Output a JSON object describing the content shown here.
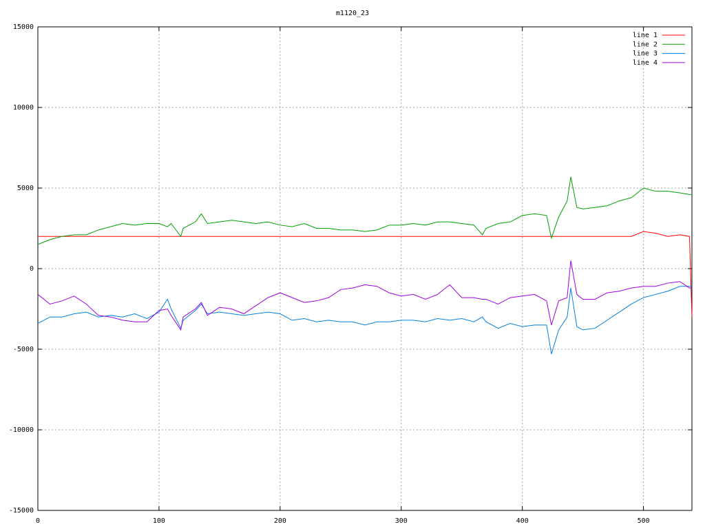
{
  "chart_data": {
    "type": "line",
    "title": "m1120_23",
    "x": [
      0,
      10,
      20,
      30,
      40,
      50,
      60,
      70,
      80,
      90,
      100,
      107,
      110,
      118,
      120,
      130,
      135,
      140,
      150,
      160,
      170,
      180,
      190,
      200,
      210,
      220,
      230,
      240,
      250,
      260,
      270,
      280,
      290,
      300,
      310,
      320,
      330,
      340,
      350,
      360,
      367,
      370,
      380,
      390,
      400,
      410,
      420,
      424,
      430,
      437,
      440,
      445,
      450,
      460,
      470,
      480,
      490,
      500,
      510,
      520,
      530,
      538,
      540
    ],
    "series": [
      {
        "name": "line 1",
        "color": "#ff0000",
        "values": [
          2000,
          2000,
          2000,
          2000,
          2000,
          2000,
          2000,
          2000,
          2000,
          2000,
          2000,
          2000,
          2000,
          2000,
          2000,
          2000,
          2000,
          2000,
          2000,
          2000,
          2000,
          2000,
          2000,
          2000,
          2000,
          2000,
          2000,
          2000,
          2000,
          2000,
          2000,
          2000,
          2000,
          2000,
          2000,
          2000,
          2000,
          2000,
          2000,
          2000,
          2000,
          2000,
          2000,
          2000,
          2000,
          2000,
          2000,
          2000,
          2000,
          2000,
          2000,
          2000,
          2000,
          2000,
          2000,
          2000,
          2000,
          2300,
          2200,
          2000,
          2100,
          2000,
          -3000
        ]
      },
      {
        "name": "line 2",
        "color": "#00a000",
        "values": [
          1500,
          1800,
          2000,
          2100,
          2100,
          2400,
          2600,
          2800,
          2700,
          2800,
          2800,
          2600,
          2800,
          2000,
          2500,
          2900,
          3400,
          2800,
          2900,
          3000,
          2900,
          2800,
          2900,
          2700,
          2600,
          2800,
          2500,
          2500,
          2400,
          2400,
          2300,
          2400,
          2700,
          2700,
          2800,
          2700,
          2900,
          2900,
          2800,
          2700,
          2100,
          2500,
          2800,
          2900,
          3300,
          3400,
          3300,
          1900,
          3200,
          4200,
          5700,
          3800,
          3700,
          3800,
          3900,
          4200,
          4400,
          5000,
          4800,
          4800,
          4700,
          4600,
          4600
        ]
      },
      {
        "name": "line 3",
        "color": "#0080e0",
        "values": [
          -3400,
          -3000,
          -3000,
          -2800,
          -2700,
          -3000,
          -2900,
          -3000,
          -2800,
          -3100,
          -2700,
          -1900,
          -2500,
          -3700,
          -3200,
          -2600,
          -2200,
          -2800,
          -2700,
          -2800,
          -2900,
          -2800,
          -2700,
          -2800,
          -3200,
          -3100,
          -3300,
          -3200,
          -3300,
          -3300,
          -3500,
          -3300,
          -3300,
          -3200,
          -3200,
          -3300,
          -3100,
          -3200,
          -3100,
          -3300,
          -3000,
          -3300,
          -3700,
          -3400,
          -3600,
          -3500,
          -3500,
          -5300,
          -3800,
          -3000,
          -1200,
          -3600,
          -3800,
          -3700,
          -3200,
          -2700,
          -2200,
          -1800,
          -1600,
          -1400,
          -1100,
          -1100,
          -1100
        ]
      },
      {
        "name": "line 4",
        "color": "#a000e0",
        "values": [
          -1600,
          -2200,
          -2000,
          -1700,
          -2200,
          -2900,
          -3000,
          -3200,
          -3300,
          -3300,
          -2600,
          -2500,
          -2900,
          -3800,
          -3000,
          -2500,
          -2100,
          -2900,
          -2400,
          -2500,
          -2800,
          -2300,
          -1800,
          -1500,
          -1800,
          -2100,
          -2000,
          -1800,
          -1300,
          -1200,
          -1000,
          -1100,
          -1500,
          -1700,
          -1600,
          -1900,
          -1600,
          -1000,
          -1800,
          -1800,
          -1900,
          -1900,
          -2200,
          -1800,
          -1700,
          -1600,
          -2000,
          -3500,
          -2000,
          -1800,
          500,
          -1600,
          -1900,
          -1900,
          -1500,
          -1400,
          -1200,
          -1100,
          -1100,
          -900,
          -800,
          -1200,
          -1200
        ]
      }
    ],
    "xlim": [
      0,
      540
    ],
    "ylim": [
      -15000,
      15000
    ],
    "xticks": [
      0,
      100,
      200,
      300,
      400,
      500
    ],
    "yticks": [
      -15000,
      -10000,
      -5000,
      0,
      5000,
      10000,
      15000
    ],
    "grid": true,
    "legend": "top-right"
  }
}
